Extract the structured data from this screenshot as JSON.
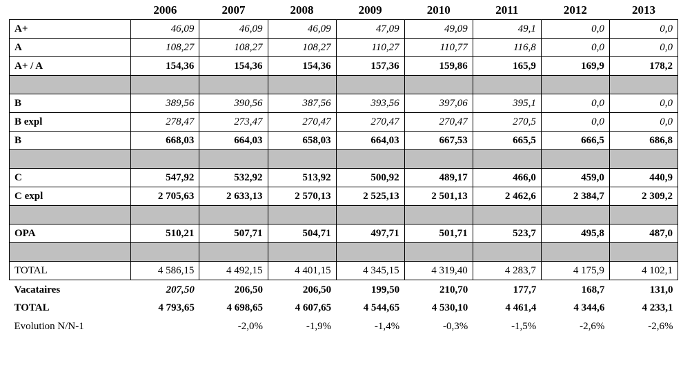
{
  "table": {
    "corner_label": "",
    "columns": [
      "2006",
      "2007",
      "2008",
      "2009",
      "2010",
      "2011",
      "2012",
      "2013"
    ],
    "colors": {
      "spacer_row": "#c0c0c0",
      "border": "#000000",
      "background": "#ffffff"
    },
    "rows": [
      {
        "label": "A+",
        "label_style": "bold",
        "value_style": "italic",
        "bordered": true,
        "values": [
          "46,09",
          "46,09",
          "46,09",
          "47,09",
          "49,09",
          "49,1",
          "0,0",
          "0,0"
        ]
      },
      {
        "label": "A",
        "label_style": "bold",
        "value_style": "italic",
        "bordered": true,
        "values": [
          "108,27",
          "108,27",
          "108,27",
          "110,27",
          "110,77",
          "116,8",
          "0,0",
          "0,0"
        ]
      },
      {
        "label": "A+ / A",
        "label_style": "bold",
        "value_style": "bold",
        "bordered": true,
        "values": [
          "154,36",
          "154,36",
          "154,36",
          "157,36",
          "159,86",
          "165,9",
          "169,9",
          "178,2"
        ]
      },
      {
        "type": "spacer",
        "bordered": true
      },
      {
        "label": "B",
        "label_style": "bold",
        "value_style": "italic",
        "bordered": true,
        "values": [
          "389,56",
          "390,56",
          "387,56",
          "393,56",
          "397,06",
          "395,1",
          "0,0",
          "0,0"
        ]
      },
      {
        "label": "B expl",
        "label_style": "bold",
        "value_style": "italic",
        "bordered": true,
        "values": [
          "278,47",
          "273,47",
          "270,47",
          "270,47",
          "270,47",
          "270,5",
          "0,0",
          "0,0"
        ]
      },
      {
        "label": "B",
        "label_style": "bold",
        "value_style": "bold",
        "bordered": true,
        "values": [
          "668,03",
          "664,03",
          "658,03",
          "664,03",
          "667,53",
          "665,5",
          "666,5",
          "686,8"
        ]
      },
      {
        "type": "spacer",
        "bordered": true
      },
      {
        "label": "C",
        "label_style": "bold",
        "value_style": "bold",
        "bordered": true,
        "values": [
          "547,92",
          "532,92",
          "513,92",
          "500,92",
          "489,17",
          "466,0",
          "459,0",
          "440,9"
        ]
      },
      {
        "label": "C expl",
        "label_style": "bold",
        "value_style": "bold",
        "bordered": true,
        "values": [
          "2 705,63",
          "2 633,13",
          "2 570,13",
          "2 525,13",
          "2 501,13",
          "2 462,6",
          "2 384,7",
          "2 309,2"
        ]
      },
      {
        "type": "spacer",
        "bordered": true
      },
      {
        "label": "OPA",
        "label_style": "bold",
        "value_style": "bold",
        "bordered": true,
        "values": [
          "510,21",
          "507,71",
          "504,71",
          "497,71",
          "501,71",
          "523,7",
          "495,8",
          "487,0"
        ]
      },
      {
        "type": "spacer",
        "bordered": true
      },
      {
        "label": "TOTAL",
        "label_style": "regular",
        "label_align": "right",
        "value_style": "regular",
        "bordered": true,
        "values": [
          "4 586,15",
          "4 492,15",
          "4 401,15",
          "4 345,15",
          "4 319,40",
          "4 283,7",
          "4 175,9",
          "4 102,1"
        ]
      },
      {
        "label": "Vacataires",
        "label_style": "bold",
        "value_style": "bold",
        "bordered": false,
        "footgap": true,
        "cell_styles": {
          "0": "bold-italic"
        },
        "values": [
          "207,50",
          "206,50",
          "206,50",
          "199,50",
          "210,70",
          "177,7",
          "168,7",
          "131,0"
        ]
      },
      {
        "label": "TOTAL",
        "label_style": "bold",
        "value_style": "bold",
        "bordered": false,
        "values": [
          "4 793,65",
          "4 698,65",
          "4 607,65",
          "4 544,65",
          "4 530,10",
          "4 461,4",
          "4 344,6",
          "4 233,1"
        ]
      },
      {
        "label": "Evolution N/N-1",
        "label_style": "regular",
        "value_style": "regular",
        "bordered": false,
        "values": [
          "",
          "-2,0%",
          "-1,9%",
          "-1,4%",
          "-0,3%",
          "-1,5%",
          "-2,6%",
          "-2,6%"
        ]
      }
    ]
  }
}
